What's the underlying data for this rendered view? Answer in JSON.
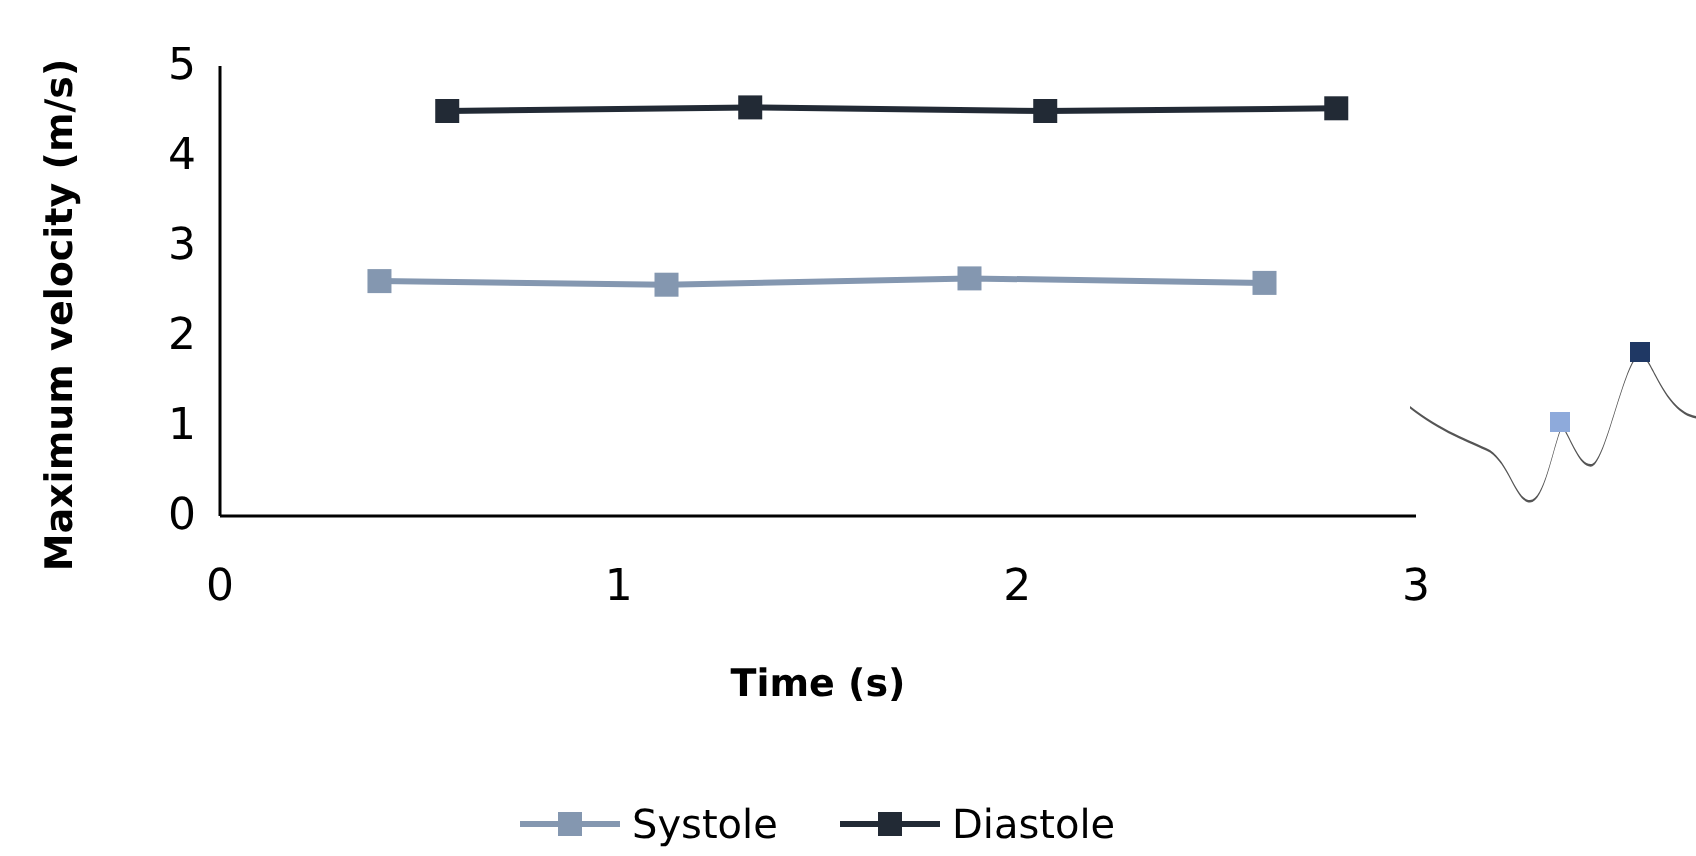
{
  "chart_data": {
    "type": "line",
    "xlabel": "Time (s)",
    "ylabel": "Maximum velocity (m/s)",
    "xlim": [
      0,
      3
    ],
    "xticks": [
      0,
      1,
      2,
      3
    ],
    "ylim": [
      0,
      5
    ],
    "yticks": [
      0,
      1,
      2,
      3,
      4,
      5
    ],
    "grid": false,
    "legend": "bottom",
    "marker": "square",
    "line_style": "solid",
    "series": [
      {
        "name": "Systole",
        "color": "#8497b0",
        "x": [
          0.4,
          1.12,
          1.88,
          2.62
        ],
        "values": [
          2.61,
          2.57,
          2.64,
          2.59
        ]
      },
      {
        "name": "Diastole",
        "color": "#222a35",
        "x": [
          0.57,
          1.33,
          2.07,
          2.8
        ],
        "values": [
          4.5,
          4.54,
          4.5,
          4.53
        ]
      }
    ]
  }
}
